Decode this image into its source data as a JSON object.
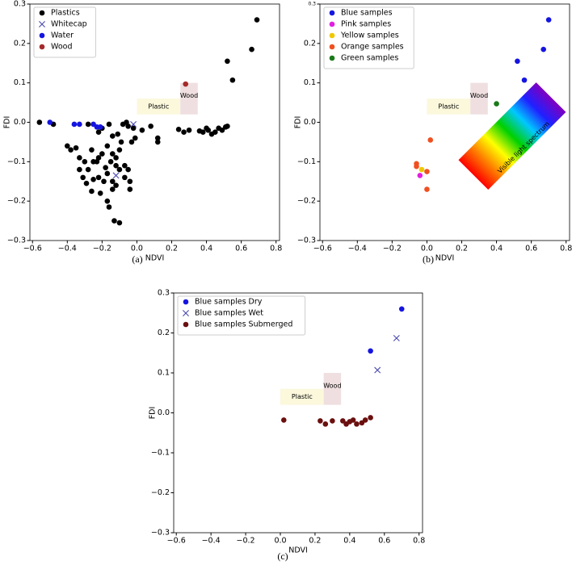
{
  "chart_data": [
    {
      "type": "scatter",
      "caption": "(a)",
      "x_label": "NDVI",
      "y_label": "FDI",
      "xlim": [
        -0.615,
        0.82
      ],
      "ylim": [
        -0.3,
        0.3
      ],
      "xticks": [
        {
          "value": -0.6,
          "label": "−0.6"
        },
        {
          "value": -0.4,
          "label": "−0.4"
        },
        {
          "value": -0.2,
          "label": "−0.2"
        },
        {
          "value": 0,
          "label": "0.0"
        },
        0.2,
        0.4,
        0.6,
        0.8
      ],
      "yticks": [
        {
          "value": -0.3,
          "label": "−0.3"
        },
        {
          "value": -0.2,
          "label": "−0.2"
        },
        {
          "value": -0.1,
          "label": "−0.1"
        },
        {
          "value": 0,
          "label": "0.0"
        },
        0.1,
        0.2,
        0.3
      ],
      "legend": "upper left",
      "regions": [
        {
          "label": "Plastic",
          "x": [
            0,
            0.25
          ],
          "y": [
            0.02,
            0.06
          ],
          "color": "#fbf8dc"
        },
        {
          "label": "Wood",
          "x": [
            0.25,
            0.35
          ],
          "y": [
            0.02,
            0.1
          ],
          "color": "#efdfe0"
        }
      ],
      "series": [
        {
          "name": "Plastics",
          "color": "#000000",
          "marker": "o",
          "x": [
            -0.56,
            -0.48,
            0.69,
            0.66,
            0.52,
            0.55,
            0.51,
            0.52,
            0.49,
            0.47,
            0.45,
            0.43,
            0.41,
            0.4,
            0.38,
            0.36,
            0.3,
            0.27,
            0.24,
            0.12,
            0.12,
            0.08,
            0.03,
            -0.02,
            -0.05,
            -0.01,
            -0.03,
            -0.06,
            -0.08,
            -0.11,
            -0.14,
            -0.16,
            -0.2,
            -0.22,
            -0.17,
            -0.14,
            -0.12,
            -0.1,
            -0.09,
            -0.07,
            -0.05,
            -0.04,
            -0.04,
            -0.07,
            -0.1,
            -0.12,
            -0.14,
            -0.15,
            -0.17,
            -0.18,
            -0.2,
            -0.22,
            -0.23,
            -0.25,
            -0.26,
            -0.28,
            -0.29,
            -0.31,
            -0.3,
            -0.33,
            -0.35,
            -0.38,
            -0.4,
            -0.22,
            -0.21,
            -0.17,
            -0.16,
            -0.13,
            -0.1,
            -0.12,
            -0.14,
            -0.19,
            -0.25,
            -0.26,
            -0.33,
            -0.28
          ],
          "values": [
            0.0,
            -0.005,
            0.26,
            0.185,
            0.155,
            0.107,
            -0.012,
            -0.01,
            -0.02,
            -0.015,
            -0.025,
            -0.03,
            -0.02,
            -0.015,
            -0.025,
            -0.022,
            -0.02,
            -0.025,
            -0.018,
            -0.04,
            -0.05,
            -0.01,
            -0.02,
            -0.015,
            -0.01,
            -0.04,
            -0.05,
            0.0,
            -0.005,
            -0.03,
            -0.035,
            -0.005,
            -0.015,
            -0.025,
            -0.06,
            -0.08,
            -0.09,
            -0.07,
            -0.05,
            -0.11,
            -0.12,
            -0.15,
            -0.17,
            -0.14,
            -0.12,
            -0.11,
            -0.15,
            -0.1,
            -0.13,
            -0.115,
            -0.08,
            -0.09,
            -0.1,
            -0.1,
            -0.07,
            -0.12,
            -0.155,
            -0.14,
            -0.1,
            -0.09,
            -0.065,
            -0.07,
            -0.06,
            -0.14,
            -0.18,
            -0.2,
            -0.215,
            -0.25,
            -0.255,
            -0.16,
            -0.17,
            -0.15,
            -0.145,
            -0.175,
            -0.12,
            -0.005
          ]
        },
        {
          "name": "Whitecap",
          "color": "#4a4ab0",
          "marker": "x",
          "x": [
            -0.12,
            -0.02
          ],
          "values": [
            -0.135,
            -0.005
          ]
        },
        {
          "name": "Water",
          "color": "#1515e0",
          "marker": "o",
          "x": [
            -0.5,
            -0.36,
            -0.33,
            -0.25,
            -0.23,
            -0.21
          ],
          "values": [
            0.0,
            -0.005,
            -0.005,
            -0.005,
            -0.012,
            -0.012
          ]
        },
        {
          "name": "Wood",
          "color": "#a52a2a",
          "marker": "o",
          "x": [
            0.28
          ],
          "values": [
            0.097
          ]
        }
      ]
    },
    {
      "type": "scatter",
      "caption": "(b)",
      "x_label": "NDVI",
      "y_label": "FDI",
      "xlim": [
        -0.615,
        0.82
      ],
      "ylim": [
        -0.3,
        0.3
      ],
      "xticks": [
        {
          "value": -0.6,
          "label": "−0.6"
        },
        {
          "value": -0.4,
          "label": "−0.4"
        },
        {
          "value": -0.2,
          "label": "−0.2"
        },
        {
          "value": 0,
          "label": "0.0"
        },
        0.2,
        0.4,
        0.6,
        0.8
      ],
      "yticks": [
        {
          "value": -0.3,
          "label": "−0.3"
        },
        {
          "value": -0.2,
          "label": "−0.2"
        },
        {
          "value": -0.1,
          "label": "−0.1"
        },
        {
          "value": 0,
          "label": "0.0"
        },
        0.1,
        0.2,
        0.3
      ],
      "legend": "upper left",
      "spectrum_label": "Visible light spectrum",
      "regions": [
        {
          "label": "Plastic",
          "x": [
            0,
            0.25
          ],
          "y": [
            0.02,
            0.06
          ],
          "color": "#fbf8dc"
        },
        {
          "label": "Wood",
          "x": [
            0.25,
            0.35
          ],
          "y": [
            0.02,
            0.1
          ],
          "color": "#efdfe0"
        }
      ],
      "series": [
        {
          "name": "Blue samples",
          "color": "#1515e0",
          "marker": "o",
          "x": [
            0.7,
            0.67,
            0.52,
            0.56
          ],
          "values": [
            0.26,
            0.185,
            0.155,
            0.107
          ]
        },
        {
          "name": "Pink samples",
          "color": "#e020e0",
          "marker": "o",
          "x": [
            -0.04
          ],
          "values": [
            -0.135
          ]
        },
        {
          "name": "Yellow samples",
          "color": "#f0c800",
          "marker": "o",
          "x": [
            -0.03
          ],
          "values": [
            -0.12
          ]
        },
        {
          "name": "Orange samples",
          "color": "#f05020",
          "marker": "o",
          "x": [
            -0.06,
            -0.06,
            0.02,
            0.0,
            0.0
          ],
          "values": [
            -0.105,
            -0.112,
            -0.045,
            -0.125,
            -0.17
          ]
        },
        {
          "name": "Green samples",
          "color": "#1a7a1a",
          "marker": "o",
          "x": [
            0.4
          ],
          "values": [
            0.047
          ]
        }
      ]
    },
    {
      "type": "scatter",
      "caption": "(c)",
      "x_label": "NDVI",
      "y_label": "FDI",
      "xlim": [
        -0.615,
        0.82
      ],
      "ylim": [
        -0.3,
        0.3
      ],
      "xticks": [
        {
          "value": -0.6,
          "label": "−0.6"
        },
        {
          "value": -0.4,
          "label": "−0.4"
        },
        {
          "value": -0.2,
          "label": "−0.2"
        },
        {
          "value": 0,
          "label": "0.0"
        },
        0.2,
        0.4,
        0.6,
        0.8
      ],
      "yticks": [
        {
          "value": -0.3,
          "label": "−0.3"
        },
        {
          "value": -0.2,
          "label": "−0.2"
        },
        {
          "value": -0.1,
          "label": "−0.1"
        },
        {
          "value": 0,
          "label": "0.0"
        },
        0.1,
        0.2,
        0.3
      ],
      "legend": "upper left",
      "regions": [
        {
          "label": "Plastic",
          "x": [
            0,
            0.25
          ],
          "y": [
            0.02,
            0.06
          ],
          "color": "#fbf8dc"
        },
        {
          "label": "Wood",
          "x": [
            0.25,
            0.35
          ],
          "y": [
            0.02,
            0.1
          ],
          "color": "#efdfe0"
        }
      ],
      "series": [
        {
          "name": "Blue samples Dry",
          "color": "#1515e0",
          "marker": "o",
          "x": [
            0.7,
            0.52
          ],
          "values": [
            0.26,
            0.155
          ]
        },
        {
          "name": "Blue samples Wet",
          "color": "#4a4ab0",
          "marker": "x",
          "x": [
            0.67,
            0.56
          ],
          "values": [
            0.187,
            0.107
          ]
        },
        {
          "name": "Blue samples Submerged",
          "color": "#6b0f0f",
          "marker": "o",
          "x": [
            0.02,
            0.23,
            0.26,
            0.3,
            0.36,
            0.38,
            0.4,
            0.42,
            0.44,
            0.47,
            0.49,
            0.52
          ],
          "values": [
            -0.018,
            -0.02,
            -0.028,
            -0.02,
            -0.02,
            -0.028,
            -0.022,
            -0.018,
            -0.028,
            -0.025,
            -0.018,
            -0.012
          ]
        }
      ]
    }
  ]
}
